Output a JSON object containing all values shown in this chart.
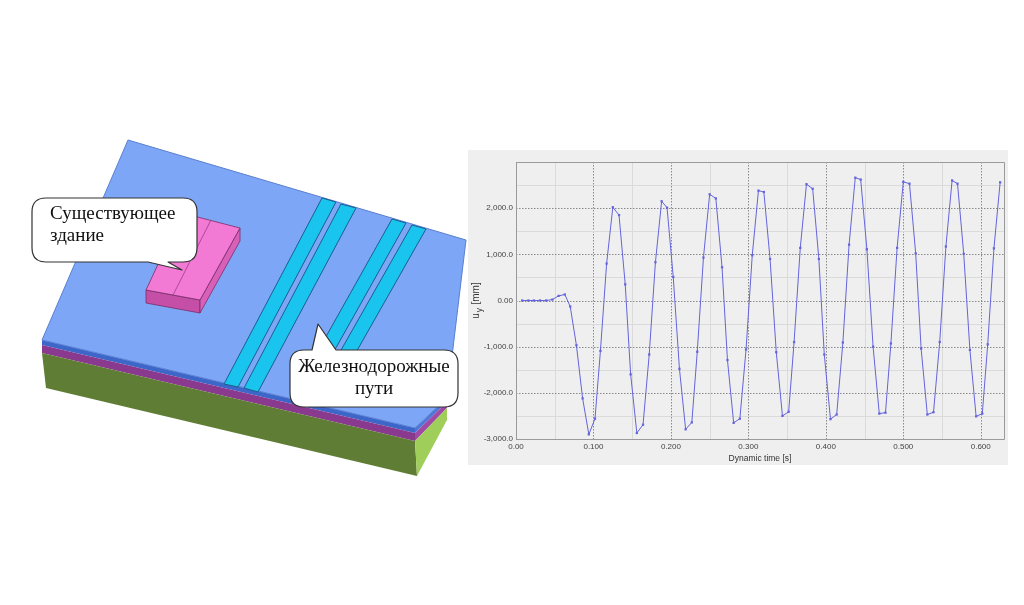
{
  "chart_data": {
    "type": "line",
    "xlabel": "Dynamic time [s]",
    "ylabel": "u$_{y}$ [mm]",
    "annotations": [
      "Существующее здание",
      "Железнодорожные пути"
    ],
    "x": [
      0.008,
      0.016,
      0.023,
      0.031,
      0.039,
      0.047,
      0.055,
      0.063,
      0.07,
      0.078,
      0.086,
      0.094,
      0.102,
      0.109,
      0.117,
      0.125,
      0.133,
      0.141,
      0.148,
      0.156,
      0.164,
      0.172,
      0.18,
      0.188,
      0.195,
      0.203,
      0.211,
      0.219,
      0.227,
      0.234,
      0.242,
      0.25,
      0.258,
      0.266,
      0.273,
      0.281,
      0.289,
      0.297,
      0.305,
      0.313,
      0.32,
      0.328,
      0.336,
      0.344,
      0.352,
      0.359,
      0.367,
      0.375,
      0.383,
      0.391,
      0.398,
      0.406,
      0.414,
      0.422,
      0.43,
      0.438,
      0.445,
      0.453,
      0.461,
      0.469,
      0.477,
      0.484,
      0.492,
      0.5,
      0.508,
      0.516,
      0.523,
      0.531,
      0.539,
      0.547,
      0.555,
      0.563,
      0.57,
      0.578,
      0.586,
      0.594,
      0.602,
      0.609,
      0.617,
      0.625
    ],
    "series": [
      {
        "color": "#6464dc",
        "values": [
          0,
          0,
          0,
          0,
          0,
          20,
          100,
          130,
          -130,
          -970,
          -2120,
          -2900,
          -2560,
          -1090,
          800,
          2020,
          1850,
          350,
          -1600,
          -2870,
          -2690,
          -1170,
          830,
          2150,
          2010,
          510,
          -1480,
          -2790,
          -2640,
          -1110,
          930,
          2300,
          2210,
          720,
          -1290,
          -2650,
          -2560,
          -1060,
          980,
          2380,
          2350,
          900,
          -1120,
          -2500,
          -2410,
          -900,
          1140,
          2520,
          2420,
          900,
          -1170,
          -2570,
          -2470,
          -910,
          1210,
          2660,
          2620,
          1110,
          -1000,
          -2450,
          -2430,
          -930,
          1140,
          2570,
          2530,
          1020,
          -1040,
          -2470,
          -2420,
          -900,
          1170,
          2600,
          2530,
          1010,
          -1070,
          -2510,
          -2450,
          -950,
          1130,
          2560
        ]
      }
    ],
    "xlim": [
      0,
      0.63
    ],
    "ylim": [
      -3000,
      3000
    ],
    "xticks": [
      {
        "value": 0,
        "label": "0.00"
      },
      {
        "value": 0.05,
        "label": null
      },
      {
        "value": 0.1,
        "label": "0.100"
      },
      {
        "value": 0.15,
        "label": null
      },
      {
        "value": 0.2,
        "label": "0.200"
      },
      {
        "value": 0.25,
        "label": null
      },
      {
        "value": 0.3,
        "label": "0.300"
      },
      {
        "value": 0.35,
        "label": null
      },
      {
        "value": 0.4,
        "label": "0.400"
      },
      {
        "value": 0.45,
        "label": null
      },
      {
        "value": 0.5,
        "label": "0.500"
      },
      {
        "value": 0.55,
        "label": null
      },
      {
        "value": 0.6,
        "label": "0.600"
      }
    ],
    "yticks": [
      {
        "value": -3000,
        "label": "-3,000.0"
      },
      {
        "value": -2500,
        "label": null
      },
      {
        "value": -2000,
        "label": "-2,000.0"
      },
      {
        "value": -1500,
        "label": null
      },
      {
        "value": -1000,
        "label": "-1,000.0"
      },
      {
        "value": -500,
        "label": null
      },
      {
        "value": 0,
        "label": "0.00"
      },
      {
        "value": 500,
        "label": null
      },
      {
        "value": 1000,
        "label": "1,000.0"
      },
      {
        "value": 1500,
        "label": null
      },
      {
        "value": 2000,
        "label": "2,000.0"
      },
      {
        "value": 2500,
        "label": null
      }
    ],
    "grid": true,
    "marker": "square"
  }
}
